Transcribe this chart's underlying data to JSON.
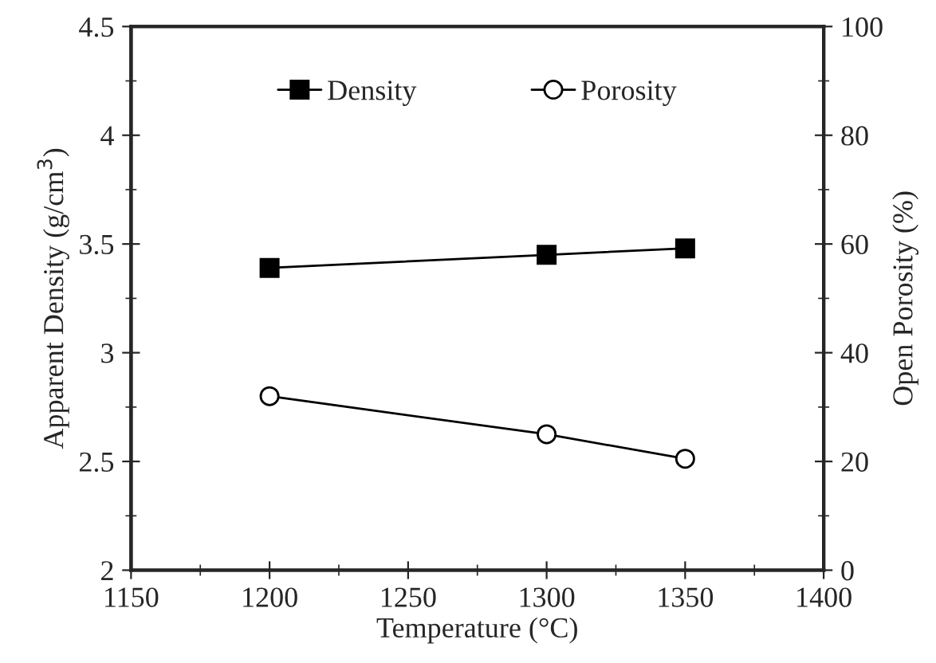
{
  "chart_data": {
    "type": "line",
    "x": [
      1200,
      1300,
      1350
    ],
    "series": [
      {
        "name": "Density",
        "color": "#000000",
        "values": [
          3.39,
          3.45,
          3.48
        ],
        "marker": "square"
      },
      {
        "name": "Porosity",
        "color": "#000000",
        "values": [
          32,
          25,
          20.5
        ],
        "marker": "circle",
        "axis": "y2"
      }
    ],
    "xlabel": "Temperature (°C)",
    "ylabel": "Apparent Density (g/cm$^{3}$)",
    "y2label": "Open Porosity (%)",
    "xlim": [
      1150,
      1400
    ],
    "xticks": [
      1150,
      1200,
      1250,
      1300,
      1350,
      1400
    ],
    "ylim": [
      2,
      4.5
    ],
    "yticks": [
      2,
      2.5,
      3,
      3.5,
      4,
      4.5
    ],
    "y2lim": [
      0,
      100
    ],
    "y2ticks": [
      0,
      20,
      40,
      60,
      80,
      100
    ],
    "legend": "top",
    "grid": false,
    "line_style": "solid"
  }
}
